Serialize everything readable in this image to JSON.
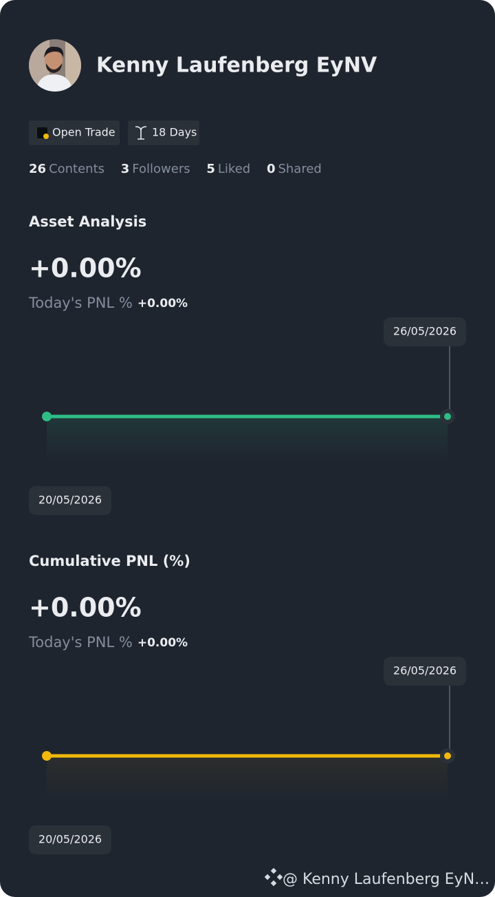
{
  "profile": {
    "name": "Kenny Laufenberg EyNV",
    "badges": [
      "Open Trade",
      "18 Days"
    ],
    "stats": [
      {
        "value": 26,
        "label": "Contents"
      },
      {
        "value": 3,
        "label": "Followers"
      },
      {
        "value": 5,
        "label": "Liked"
      },
      {
        "value": 0,
        "label": "Shared"
      }
    ]
  },
  "charts": [
    {
      "type": "line",
      "title": "Asset Analysis",
      "pnl": "+0.00%",
      "today_label": "Today's PNL %",
      "today_value": "+0.00%",
      "color": "#2ebd85",
      "x": [
        "20/05/2026",
        "26/05/2026"
      ],
      "values": [
        0,
        0
      ]
    },
    {
      "type": "line",
      "title": "Cumulative PNL (%)",
      "pnl": "+0.00%",
      "today_label": "Today's PNL %",
      "today_value": "+0.00%",
      "color": "#f0b90b",
      "x": [
        "20/05/2026",
        "26/05/2026"
      ],
      "values": [
        0,
        0
      ]
    }
  ],
  "watermark": "@ Kenny Laufenberg EyN…"
}
